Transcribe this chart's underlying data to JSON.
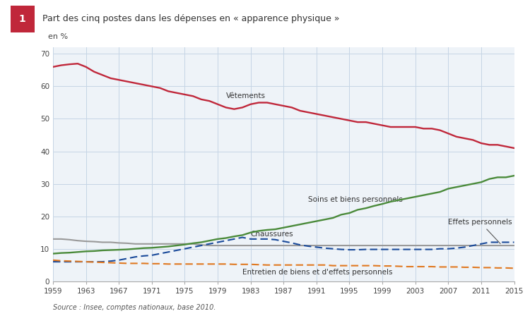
{
  "title": "Part des cinq postes dans les dépenses en « apparence physique »",
  "title_number": "1",
  "ylabel": "en %",
  "source": "Source : Insee, comptes nationaux, base 2010.",
  "background_color": "#ffffff",
  "plot_bg_color": "#eef3f8",
  "grid_color": "#c5d5e5",
  "title_bg_color": "#f5e8d8",
  "years": [
    1959,
    1960,
    1961,
    1962,
    1963,
    1964,
    1965,
    1966,
    1967,
    1968,
    1969,
    1970,
    1971,
    1972,
    1973,
    1974,
    1975,
    1976,
    1977,
    1978,
    1979,
    1980,
    1981,
    1982,
    1983,
    1984,
    1985,
    1986,
    1987,
    1988,
    1989,
    1990,
    1991,
    1992,
    1993,
    1994,
    1995,
    1996,
    1997,
    1998,
    1999,
    2000,
    2001,
    2002,
    2003,
    2004,
    2005,
    2006,
    2007,
    2008,
    2009,
    2010,
    2011,
    2012,
    2013,
    2014,
    2015
  ],
  "vetements": [
    66.0,
    66.5,
    66.8,
    67.0,
    66.0,
    64.5,
    63.5,
    62.5,
    62.0,
    61.5,
    61.0,
    60.5,
    60.0,
    59.5,
    58.5,
    58.0,
    57.5,
    57.0,
    56.0,
    55.5,
    54.5,
    53.5,
    53.0,
    53.5,
    54.5,
    55.0,
    55.0,
    54.5,
    54.0,
    53.5,
    52.5,
    52.0,
    51.5,
    51.0,
    50.5,
    50.0,
    49.5,
    49.0,
    49.0,
    48.5,
    48.0,
    47.5,
    47.5,
    47.5,
    47.5,
    47.0,
    47.0,
    46.5,
    45.5,
    44.5,
    44.0,
    43.5,
    42.5,
    42.0,
    42.0,
    41.5,
    41.0
  ],
  "soins": [
    8.5,
    8.7,
    8.8,
    9.0,
    9.2,
    9.3,
    9.5,
    9.6,
    9.7,
    9.8,
    10.0,
    10.2,
    10.3,
    10.5,
    10.7,
    11.0,
    11.3,
    11.7,
    12.0,
    12.5,
    13.0,
    13.3,
    13.8,
    14.2,
    15.0,
    15.5,
    15.8,
    16.0,
    16.5,
    17.0,
    17.5,
    18.0,
    18.5,
    19.0,
    19.5,
    20.5,
    21.0,
    22.0,
    22.5,
    23.2,
    23.8,
    24.5,
    25.0,
    25.5,
    26.0,
    26.5,
    27.0,
    27.5,
    28.5,
    29.0,
    29.5,
    30.0,
    30.5,
    31.5,
    32.0,
    32.0,
    32.5
  ],
  "chaussures": [
    6.0,
    6.0,
    6.0,
    6.0,
    6.0,
    6.0,
    6.0,
    6.2,
    6.5,
    7.0,
    7.5,
    7.8,
    8.0,
    8.5,
    9.0,
    9.5,
    10.0,
    10.5,
    11.0,
    11.5,
    12.0,
    12.5,
    13.0,
    13.5,
    13.0,
    13.0,
    13.0,
    12.8,
    12.3,
    11.8,
    11.2,
    10.8,
    10.5,
    10.2,
    10.0,
    9.8,
    9.7,
    9.7,
    9.8,
    9.8,
    9.8,
    9.8,
    9.8,
    9.8,
    9.8,
    9.8,
    9.8,
    10.0,
    10.0,
    10.2,
    10.5,
    11.0,
    11.5,
    12.0,
    12.0,
    12.0,
    12.0
  ],
  "effets": [
    13.0,
    13.0,
    12.8,
    12.5,
    12.3,
    12.2,
    12.0,
    12.0,
    11.8,
    11.7,
    11.5,
    11.5,
    11.5,
    11.5,
    11.5,
    11.5,
    11.5,
    11.5,
    11.2,
    11.0,
    11.0,
    11.0,
    11.0,
    11.0,
    11.0,
    11.0,
    11.0,
    11.0,
    11.0,
    11.0,
    11.0,
    11.0,
    11.0,
    11.0,
    11.0,
    11.0,
    11.0,
    11.0,
    11.0,
    11.0,
    11.0,
    11.0,
    11.0,
    11.0,
    11.0,
    11.0,
    11.0,
    11.0,
    11.0,
    11.0,
    11.0,
    11.0,
    11.0,
    11.0,
    11.0,
    11.0,
    11.0
  ],
  "entretien": [
    6.5,
    6.3,
    6.2,
    6.1,
    6.0,
    5.9,
    5.8,
    5.7,
    5.6,
    5.5,
    5.5,
    5.5,
    5.4,
    5.4,
    5.3,
    5.3,
    5.3,
    5.3,
    5.3,
    5.3,
    5.3,
    5.3,
    5.2,
    5.2,
    5.2,
    5.1,
    5.0,
    5.0,
    5.0,
    5.0,
    5.0,
    5.0,
    5.0,
    5.0,
    4.8,
    4.8,
    4.8,
    4.8,
    4.8,
    4.8,
    4.7,
    4.7,
    4.6,
    4.5,
    4.5,
    4.5,
    4.5,
    4.4,
    4.4,
    4.4,
    4.3,
    4.3,
    4.2,
    4.2,
    4.1,
    4.1,
    4.0
  ],
  "vetements_color": "#c0273a",
  "soins_color": "#4a8a3a",
  "chaussures_color": "#1a4a9a",
  "effets_color": "#999999",
  "entretien_color": "#e07820",
  "xticks": [
    1959,
    1963,
    1967,
    1971,
    1975,
    1979,
    1983,
    1987,
    1991,
    1995,
    1999,
    2003,
    2007,
    2011,
    2015
  ],
  "yticks": [
    0,
    10,
    20,
    30,
    40,
    50,
    60,
    70
  ],
  "ylim": [
    0,
    72
  ],
  "xlim": [
    1959,
    2015
  ]
}
